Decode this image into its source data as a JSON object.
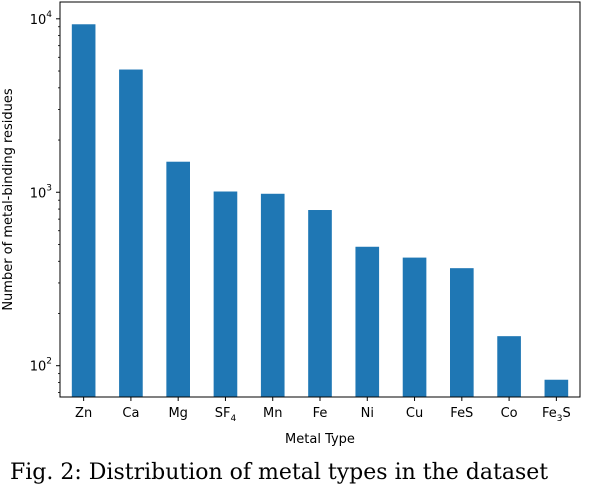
{
  "chart_data": {
    "type": "bar",
    "categories": [
      {
        "base": "Zn",
        "sub": ""
      },
      {
        "base": "Ca",
        "sub": ""
      },
      {
        "base": "Mg",
        "sub": ""
      },
      {
        "base": "SF",
        "sub": "4"
      },
      {
        "base": "Mn",
        "sub": ""
      },
      {
        "base": "Fe",
        "sub": ""
      },
      {
        "base": "Ni",
        "sub": ""
      },
      {
        "base": "Cu",
        "sub": ""
      },
      {
        "base": "FeS",
        "sub": ""
      },
      {
        "base": "Co",
        "sub": ""
      },
      {
        "base": "Fe",
        "sub": "3",
        "suffix": "S"
      }
    ],
    "values": [
      9300,
      5100,
      1500,
      1010,
      980,
      790,
      485,
      420,
      365,
      148,
      83
    ],
    "xlabel": "Metal Type",
    "ylabel": "Number of metal-binding residues",
    "yscale": "log",
    "ylim": [
      66,
      12500
    ],
    "yticks": [
      {
        "value": 100,
        "base": "10",
        "exp": "2"
      },
      {
        "value": 1000,
        "base": "10",
        "exp": "3"
      },
      {
        "value": 10000,
        "base": "10",
        "exp": "4"
      }
    ],
    "bar_color": "#1f77b4",
    "grid": false,
    "legend": "none"
  },
  "caption": "Fig. 2: Distribution of metal types in the dataset"
}
